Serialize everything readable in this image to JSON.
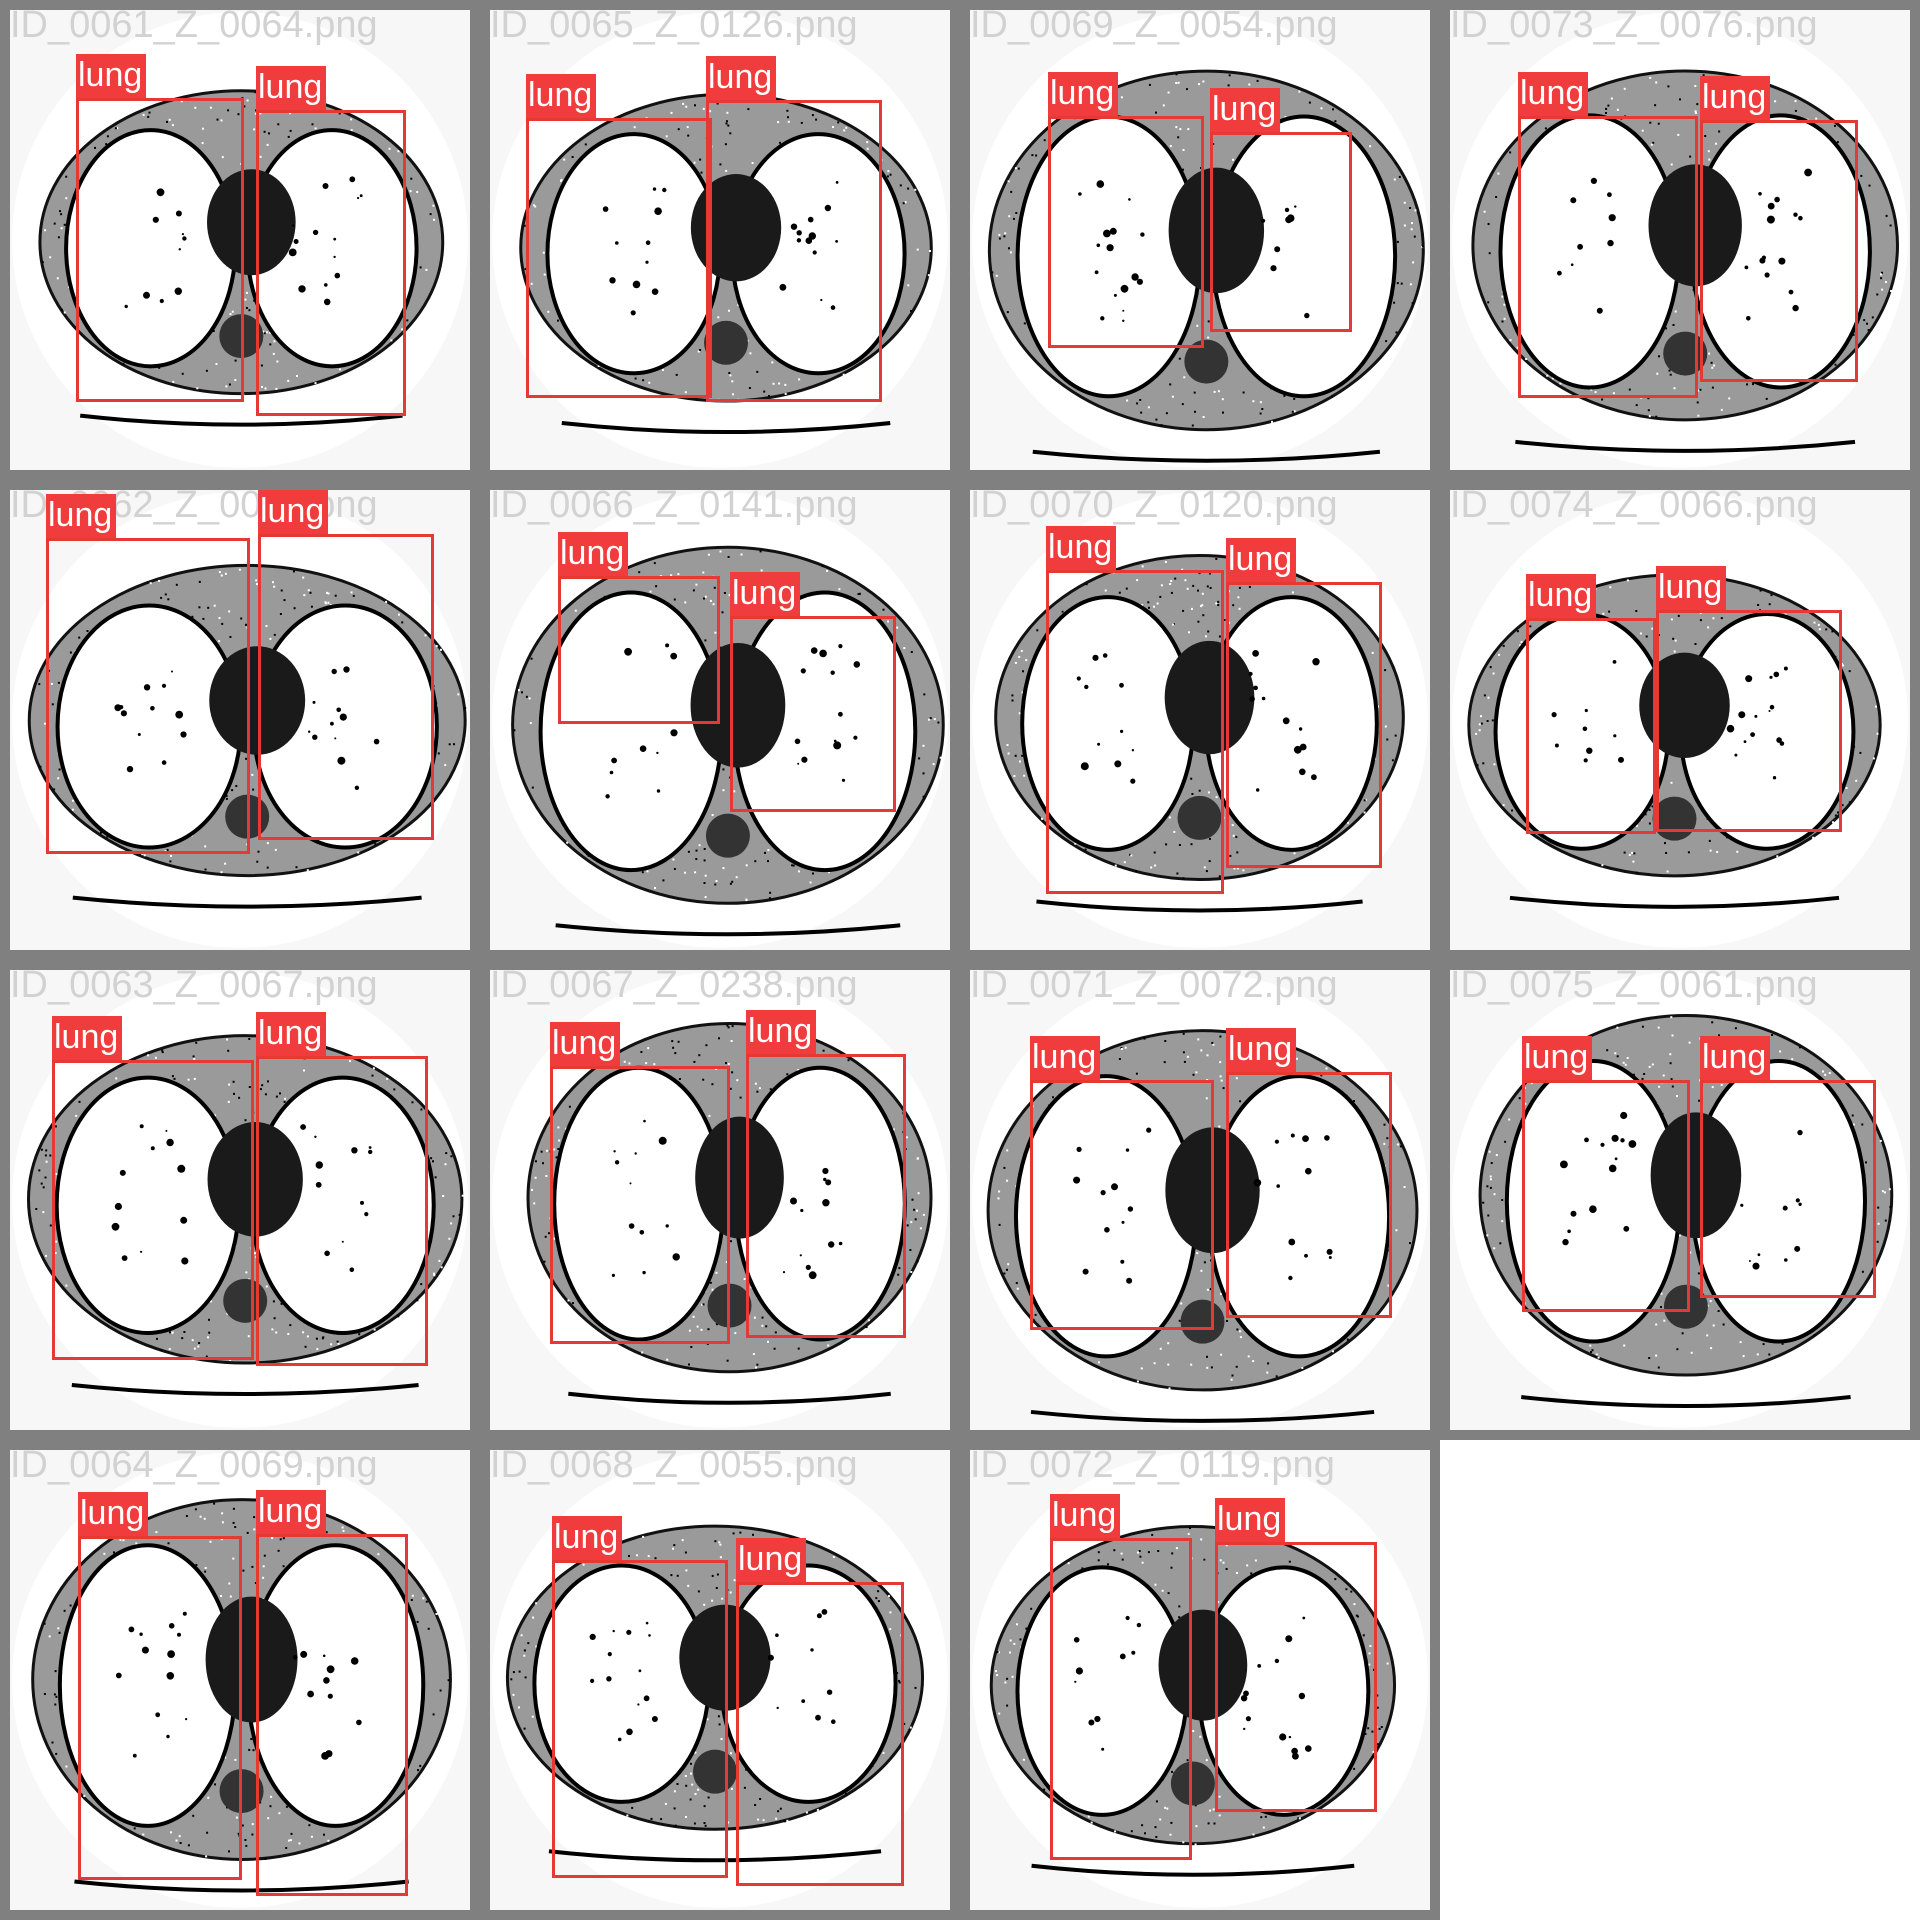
{
  "colors": {
    "tile_border": "#808080",
    "tile_bg": "#f7f7f7",
    "box": "#e53935",
    "label_bg": "#f03c3c",
    "label_text": "#ffffff"
  },
  "images": [
    {
      "filename": "ID_0061_Z_0064.png",
      "boxes": [
        {
          "label": "lung"
        },
        {
          "label": "lung"
        }
      ]
    },
    {
      "filename": "ID_0065_Z_0126.png",
      "boxes": [
        {
          "label": "lung"
        },
        {
          "label": "lung"
        }
      ]
    },
    {
      "filename": "ID_0069_Z_0054.png",
      "boxes": [
        {
          "label": "lung"
        },
        {
          "label": "lung"
        }
      ]
    },
    {
      "filename": "ID_0073_Z_0076.png",
      "boxes": [
        {
          "label": "lung"
        },
        {
          "label": "lung"
        }
      ]
    },
    {
      "filename": "ID_0062_Z_0062.png",
      "boxes": [
        {
          "label": "lung"
        },
        {
          "label": "lung"
        }
      ]
    },
    {
      "filename": "ID_0066_Z_0141.png",
      "boxes": [
        {
          "label": "lung"
        },
        {
          "label": "lung"
        }
      ]
    },
    {
      "filename": "ID_0070_Z_0120.png",
      "boxes": [
        {
          "label": "lung"
        },
        {
          "label": "lung"
        }
      ]
    },
    {
      "filename": "ID_0074_Z_0066.png",
      "boxes": [
        {
          "label": "lung"
        },
        {
          "label": "lung"
        }
      ]
    },
    {
      "filename": "ID_0063_Z_0067.png",
      "boxes": [
        {
          "label": "lung"
        },
        {
          "label": "lung"
        }
      ]
    },
    {
      "filename": "ID_0067_Z_0238.png",
      "boxes": [
        {
          "label": "lung"
        },
        {
          "label": "lung"
        }
      ]
    },
    {
      "filename": "ID_0071_Z_0072.png",
      "boxes": [
        {
          "label": "lung"
        },
        {
          "label": "lung"
        }
      ]
    },
    {
      "filename": "ID_0075_Z_0061.png",
      "boxes": [
        {
          "label": "lung"
        },
        {
          "label": "lung"
        }
      ]
    },
    {
      "filename": "ID_0064_Z_0069.png",
      "boxes": [
        {
          "label": "lung"
        },
        {
          "label": "lung"
        }
      ]
    },
    {
      "filename": "ID_0068_Z_0055.png",
      "boxes": [
        {
          "label": "lung"
        },
        {
          "label": "lung"
        }
      ]
    },
    {
      "filename": "ID_0072_Z_0119.png",
      "boxes": [
        {
          "label": "lung"
        },
        {
          "label": "lung"
        }
      ]
    }
  ]
}
